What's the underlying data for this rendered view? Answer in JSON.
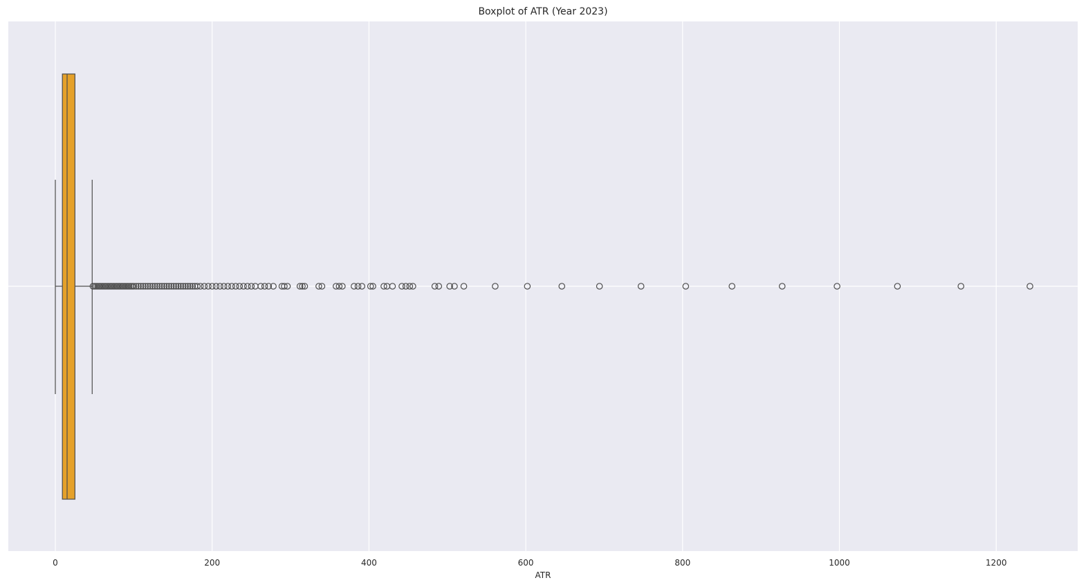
{
  "chart_data": {
    "type": "boxplot",
    "orientation": "horizontal",
    "title": "Boxplot of ATR (Year 2023)",
    "xlabel": "ATR",
    "ylabel": "",
    "xlim": [
      -60,
      1300
    ],
    "xticks": [
      0,
      200,
      400,
      600,
      800,
      1000,
      1200
    ],
    "grid": true,
    "box": {
      "whisker_low": 0,
      "q1": 9,
      "median": 15,
      "q3": 25,
      "whisker_high": 47
    },
    "outliers": [
      48,
      50,
      52,
      54,
      56,
      58,
      60,
      62,
      64,
      66,
      68,
      70,
      72,
      74,
      76,
      78,
      80,
      82,
      84,
      86,
      88,
      90,
      92,
      94,
      96,
      98,
      100,
      103,
      106,
      109,
      112,
      115,
      118,
      121,
      124,
      127,
      130,
      133,
      136,
      139,
      142,
      145,
      148,
      151,
      154,
      157,
      160,
      163,
      166,
      169,
      172,
      175,
      178,
      181,
      185,
      190,
      195,
      200,
      205,
      210,
      215,
      220,
      225,
      230,
      235,
      240,
      245,
      250,
      255,
      262,
      267,
      272,
      278,
      289,
      292,
      296,
      312,
      315,
      318,
      336,
      340,
      358,
      362,
      366,
      381,
      386,
      391,
      402,
      405,
      419,
      423,
      430,
      442,
      447,
      452,
      456,
      484,
      489,
      503,
      509,
      521,
      561,
      602,
      646,
      694,
      747,
      804,
      863,
      927,
      997,
      1074,
      1155,
      1243
    ],
    "colors": {
      "box_fill": "#E5A12A",
      "line": "#4C4C4C",
      "background": "#EAEAF2",
      "grid": "#FFFFFF"
    }
  }
}
